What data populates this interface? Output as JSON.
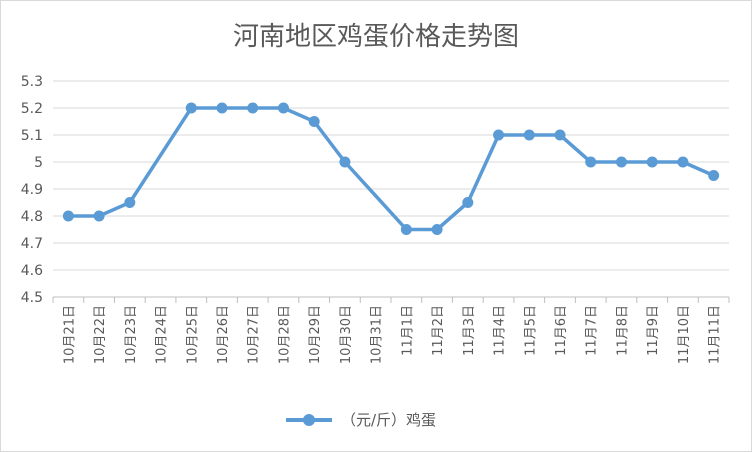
{
  "chart_data": {
    "type": "line",
    "title": "河南地区鸡蛋价格走势图",
    "xlabel": "",
    "ylabel": "",
    "categories": [
      "10月21日",
      "10月22日",
      "10月23日",
      "10月24日",
      "10月25日",
      "10月26日",
      "10月27日",
      "10月28日",
      "10月29日",
      "10月30日",
      "10月31日",
      "11月1日",
      "11月2日",
      "11月3日",
      "11月4日",
      "11月5日",
      "11月6日",
      "11月7日",
      "11月8日",
      "11月9日",
      "11月10日",
      "11月11日"
    ],
    "y_ticks": [
      "4.5",
      "4.6",
      "4.7",
      "4.8",
      "4.9",
      "5",
      "5.1",
      "5.2",
      "5.3"
    ],
    "ylim": [
      4.5,
      5.3
    ],
    "series": [
      {
        "name": "（元/斤）鸡蛋",
        "color": "#5b9bd5",
        "values": [
          4.8,
          4.8,
          4.85,
          null,
          5.2,
          5.2,
          5.2,
          5.2,
          5.15,
          5.0,
          null,
          4.75,
          4.75,
          4.85,
          5.1,
          5.1,
          5.1,
          5.0,
          5.0,
          5.0,
          5.0,
          4.95
        ]
      }
    ],
    "grid": "horizontal",
    "legend_position": "bottom"
  }
}
